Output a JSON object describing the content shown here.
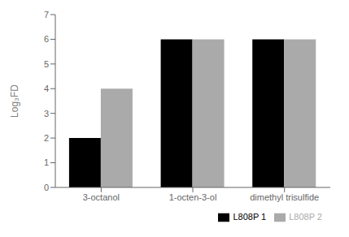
{
  "chart_data": {
    "type": "bar",
    "categories": [
      "3-octanol",
      "1-octen-3-ol",
      "dimethyl trisulfide"
    ],
    "series": [
      {
        "name": "L808P 1",
        "color": "#000000",
        "values": [
          2,
          6,
          6
        ]
      },
      {
        "name": "L808P 2",
        "color": "#aaaaaa",
        "values": [
          4,
          6,
          6
        ]
      }
    ],
    "ylabel": "Log₃FD",
    "ylim": [
      0,
      7
    ],
    "yticks": [
      0,
      1,
      2,
      3,
      4,
      5,
      6,
      7
    ],
    "grid": false,
    "legend": "lower right"
  }
}
